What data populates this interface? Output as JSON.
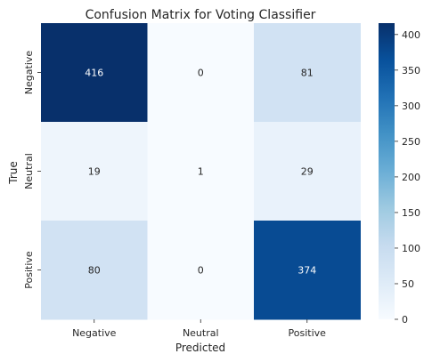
{
  "chart_data": {
    "type": "heatmap",
    "title": "Confusion Matrix for Voting Classifier",
    "xlabel": "Predicted",
    "ylabel": "True",
    "x_categories": [
      "Negative",
      "Neutral",
      "Positive"
    ],
    "y_categories": [
      "Negative",
      "Neutral",
      "Positive"
    ],
    "values": [
      [
        416,
        0,
        81
      ],
      [
        19,
        1,
        29
      ],
      [
        80,
        0,
        374
      ]
    ],
    "colormap": "Blues",
    "color_range": [
      0,
      416
    ],
    "colorbar_ticks": [
      0,
      50,
      100,
      150,
      200,
      250,
      300,
      350,
      400
    ],
    "annotations": true
  }
}
